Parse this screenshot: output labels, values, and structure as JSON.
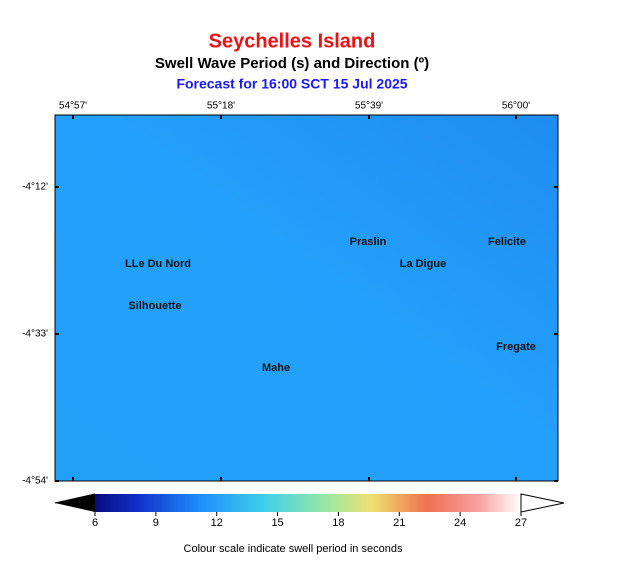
{
  "header": {
    "title": "Seychelles Island",
    "subtitle": "Swell Wave Period (s) and Direction (º)",
    "forecast": "Forecast for  16:00 SCT 15 Jul 2025"
  },
  "map": {
    "lon_labels": [
      "54°57'",
      "55°18'",
      "55°39'",
      "56°00'"
    ],
    "lat_labels": [
      "-4°12'",
      "-4°33'",
      "-4°54'"
    ],
    "places": [
      "LLe Du Nord",
      "Silhouette",
      "Mahe",
      "Praslin",
      "La Digue",
      "Felicite",
      "Fregate"
    ]
  },
  "colorbar": {
    "ticks": [
      6,
      9,
      12,
      15,
      18,
      21,
      24,
      27
    ],
    "caption": "Colour scale indicate swell period in seconds"
  }
}
